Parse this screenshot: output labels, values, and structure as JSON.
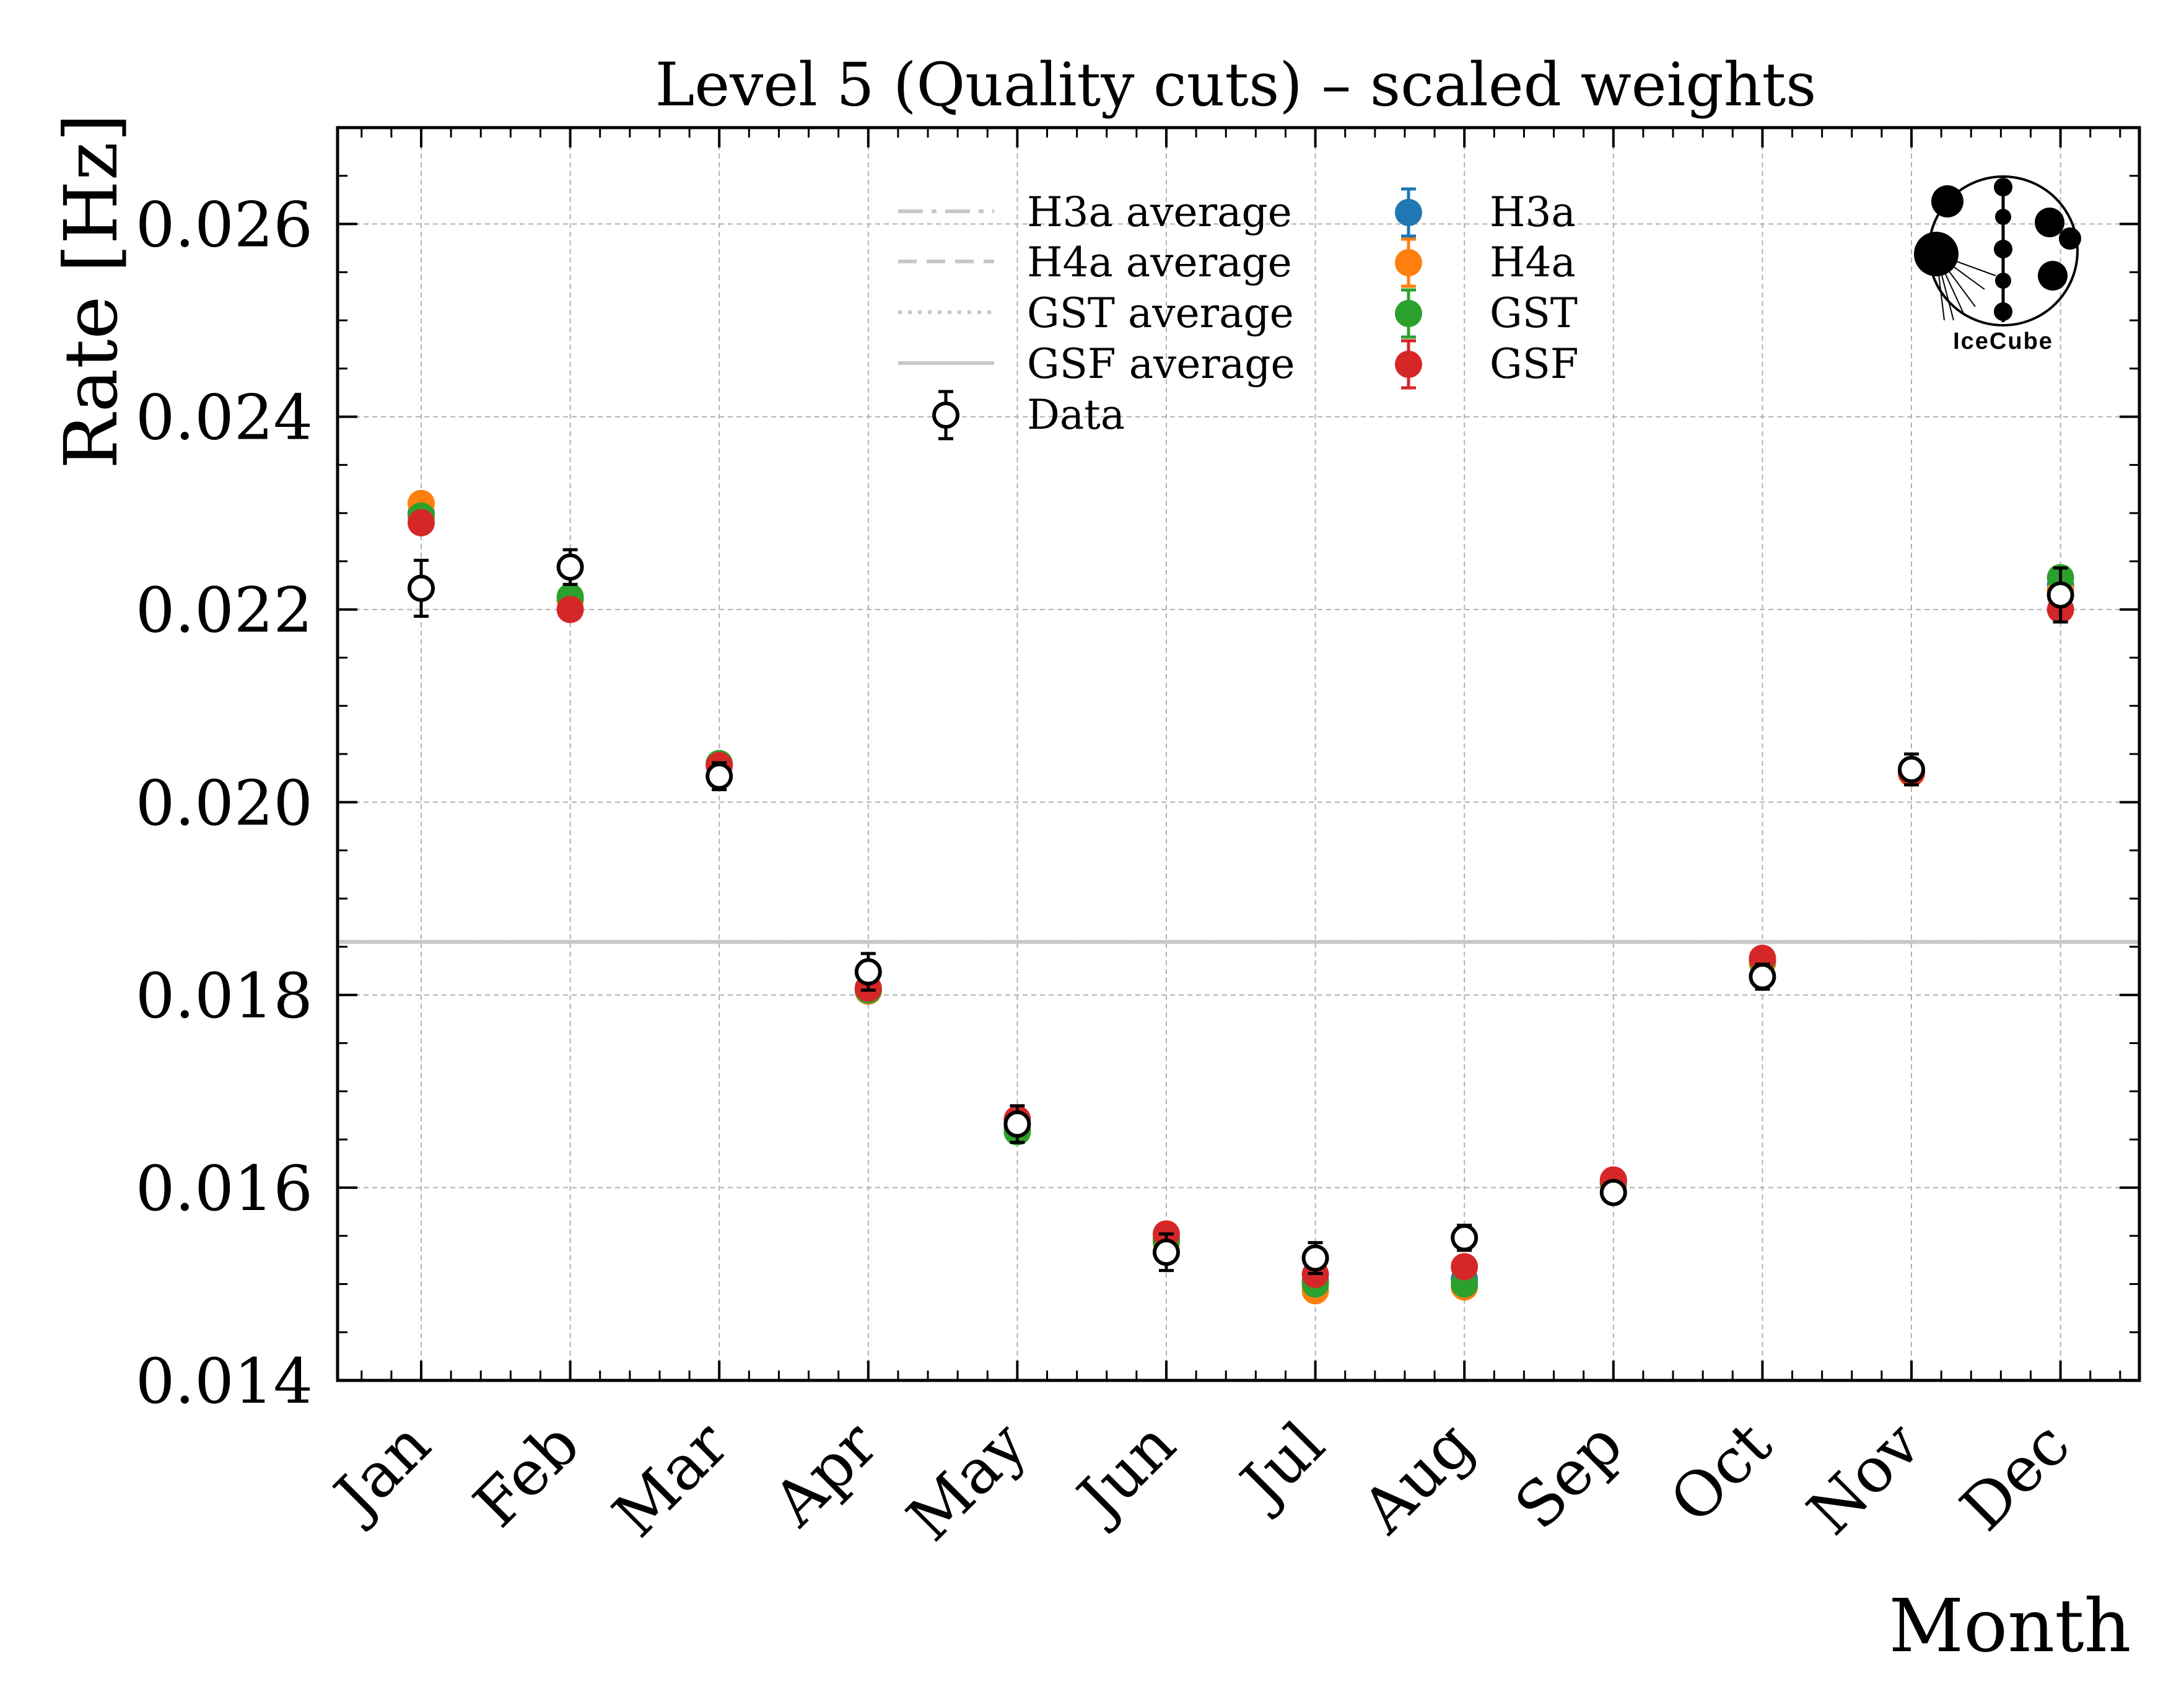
{
  "chart_data": {
    "type": "scatter",
    "title": "Level 5 (Quality cuts) – scaled weights",
    "xlabel": "Month",
    "ylabel": "Rate [Hz]",
    "categories": [
      "Jan",
      "Feb",
      "Mar",
      "Apr",
      "May",
      "Jun",
      "Jul",
      "Aug",
      "Sep",
      "Oct",
      "Nov",
      "Dec"
    ],
    "ylim": [
      0.014,
      0.027
    ],
    "yticks": [
      "0.014",
      "0.016",
      "0.018",
      "0.020",
      "0.022",
      "0.024",
      "0.026"
    ],
    "ytick_values": [
      0.014,
      0.016,
      0.018,
      0.02,
      0.022,
      0.024,
      0.026
    ],
    "grid": true,
    "legend_position": "top-center",
    "averages": [
      {
        "name": "H3a average",
        "value": 0.01855,
        "style": "dashdot",
        "color": "#c8c8c8"
      },
      {
        "name": "H4a average",
        "value": 0.01855,
        "style": "dashed",
        "color": "#c8c8c8"
      },
      {
        "name": "GST average",
        "value": 0.01855,
        "style": "dotted",
        "color": "#c8c8c8"
      },
      {
        "name": "GSF average",
        "value": 0.01855,
        "style": "solid",
        "color": "#c8c8c8"
      }
    ],
    "series": [
      {
        "name": "H3a",
        "color": "#1f77b4",
        "values": [
          0.023,
          0.0221,
          0.0204,
          0.01806,
          0.01662,
          0.01548,
          0.01503,
          0.01505,
          0.01606,
          0.01835,
          0.02032,
          0.02225
        ]
      },
      {
        "name": "H4a",
        "color": "#ff7f0e",
        "values": [
          0.0231,
          0.0221,
          0.0204,
          0.01804,
          0.0166,
          0.01543,
          0.01493,
          0.01497,
          0.01603,
          0.01833,
          0.0203,
          0.0222
        ]
      },
      {
        "name": "GST",
        "color": "#2ca02c",
        "values": [
          0.02297,
          0.02213,
          0.0204,
          0.01805,
          0.01658,
          0.01545,
          0.015,
          0.015,
          0.01605,
          0.01836,
          0.02033,
          0.02233
        ]
      },
      {
        "name": "GSF",
        "color": "#d62728",
        "values": [
          0.0229,
          0.022,
          0.02038,
          0.01807,
          0.01671,
          0.01552,
          0.0151,
          0.01518,
          0.01608,
          0.01838,
          0.02031,
          0.022
        ]
      }
    ],
    "data": {
      "name": "Data",
      "values": [
        0.02222,
        0.02244,
        0.02027,
        0.01824,
        0.01666,
        0.01533,
        0.01527,
        0.01548,
        0.01595,
        0.01819,
        0.02034,
        0.02215
      ],
      "errors": [
        0.00029,
        0.00018,
        0.00014,
        0.00019,
        0.00019,
        0.00019,
        0.00016,
        0.00013,
        0.0001,
        0.00013,
        0.00016,
        0.00028
      ]
    }
  },
  "logo": {
    "text": "IceCube"
  }
}
